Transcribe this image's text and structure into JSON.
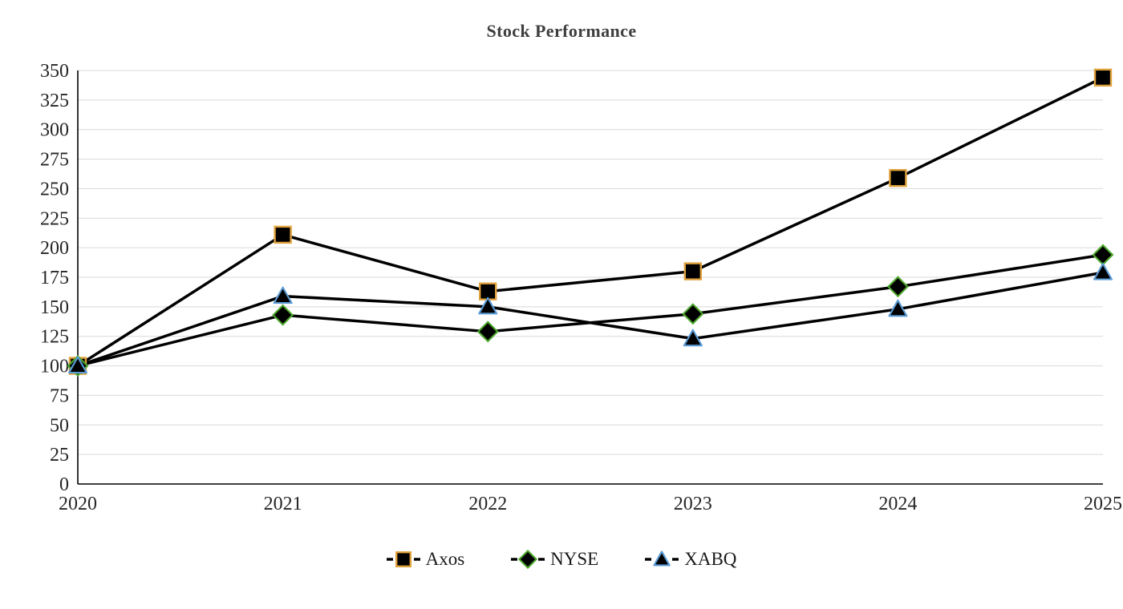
{
  "page": {
    "background_color": "#ffffff"
  },
  "chart_data": {
    "type": "line",
    "title": "Stock Performance",
    "categories": [
      "2020",
      "2021",
      "2022",
      "2023",
      "2024",
      "2025"
    ],
    "series": [
      {
        "name": "Axos",
        "marker": "square",
        "marker_fill": "#000000",
        "marker_edge_color": "#DFA13C",
        "values": [
          100,
          211,
          163,
          180,
          259,
          344
        ]
      },
      {
        "name": "NYSE",
        "marker": "diamond",
        "marker_fill": "#000000",
        "marker_edge_color": "#4EA72E",
        "values": [
          100,
          143,
          129,
          144,
          167,
          194
        ]
      },
      {
        "name": "XABQ",
        "marker": "triangle",
        "marker_fill": "#000000",
        "marker_edge_color": "#5B9BD5",
        "values": [
          100,
          159,
          150,
          123,
          148,
          179
        ]
      }
    ],
    "xlabel": "",
    "ylabel": "",
    "ylim": [
      0,
      350
    ],
    "ytick_step": 25,
    "yticks": [
      0,
      25,
      50,
      75,
      100,
      125,
      150,
      175,
      200,
      225,
      250,
      275,
      300,
      325,
      350
    ],
    "grid": true,
    "gridline_color": "#d9d9d9",
    "axis_color": "#000000",
    "line_color": "#000000",
    "line_width": 3.5,
    "axis_text_color": "#262626",
    "title_color": "#3f3f3f",
    "legend_position": "bottom"
  }
}
